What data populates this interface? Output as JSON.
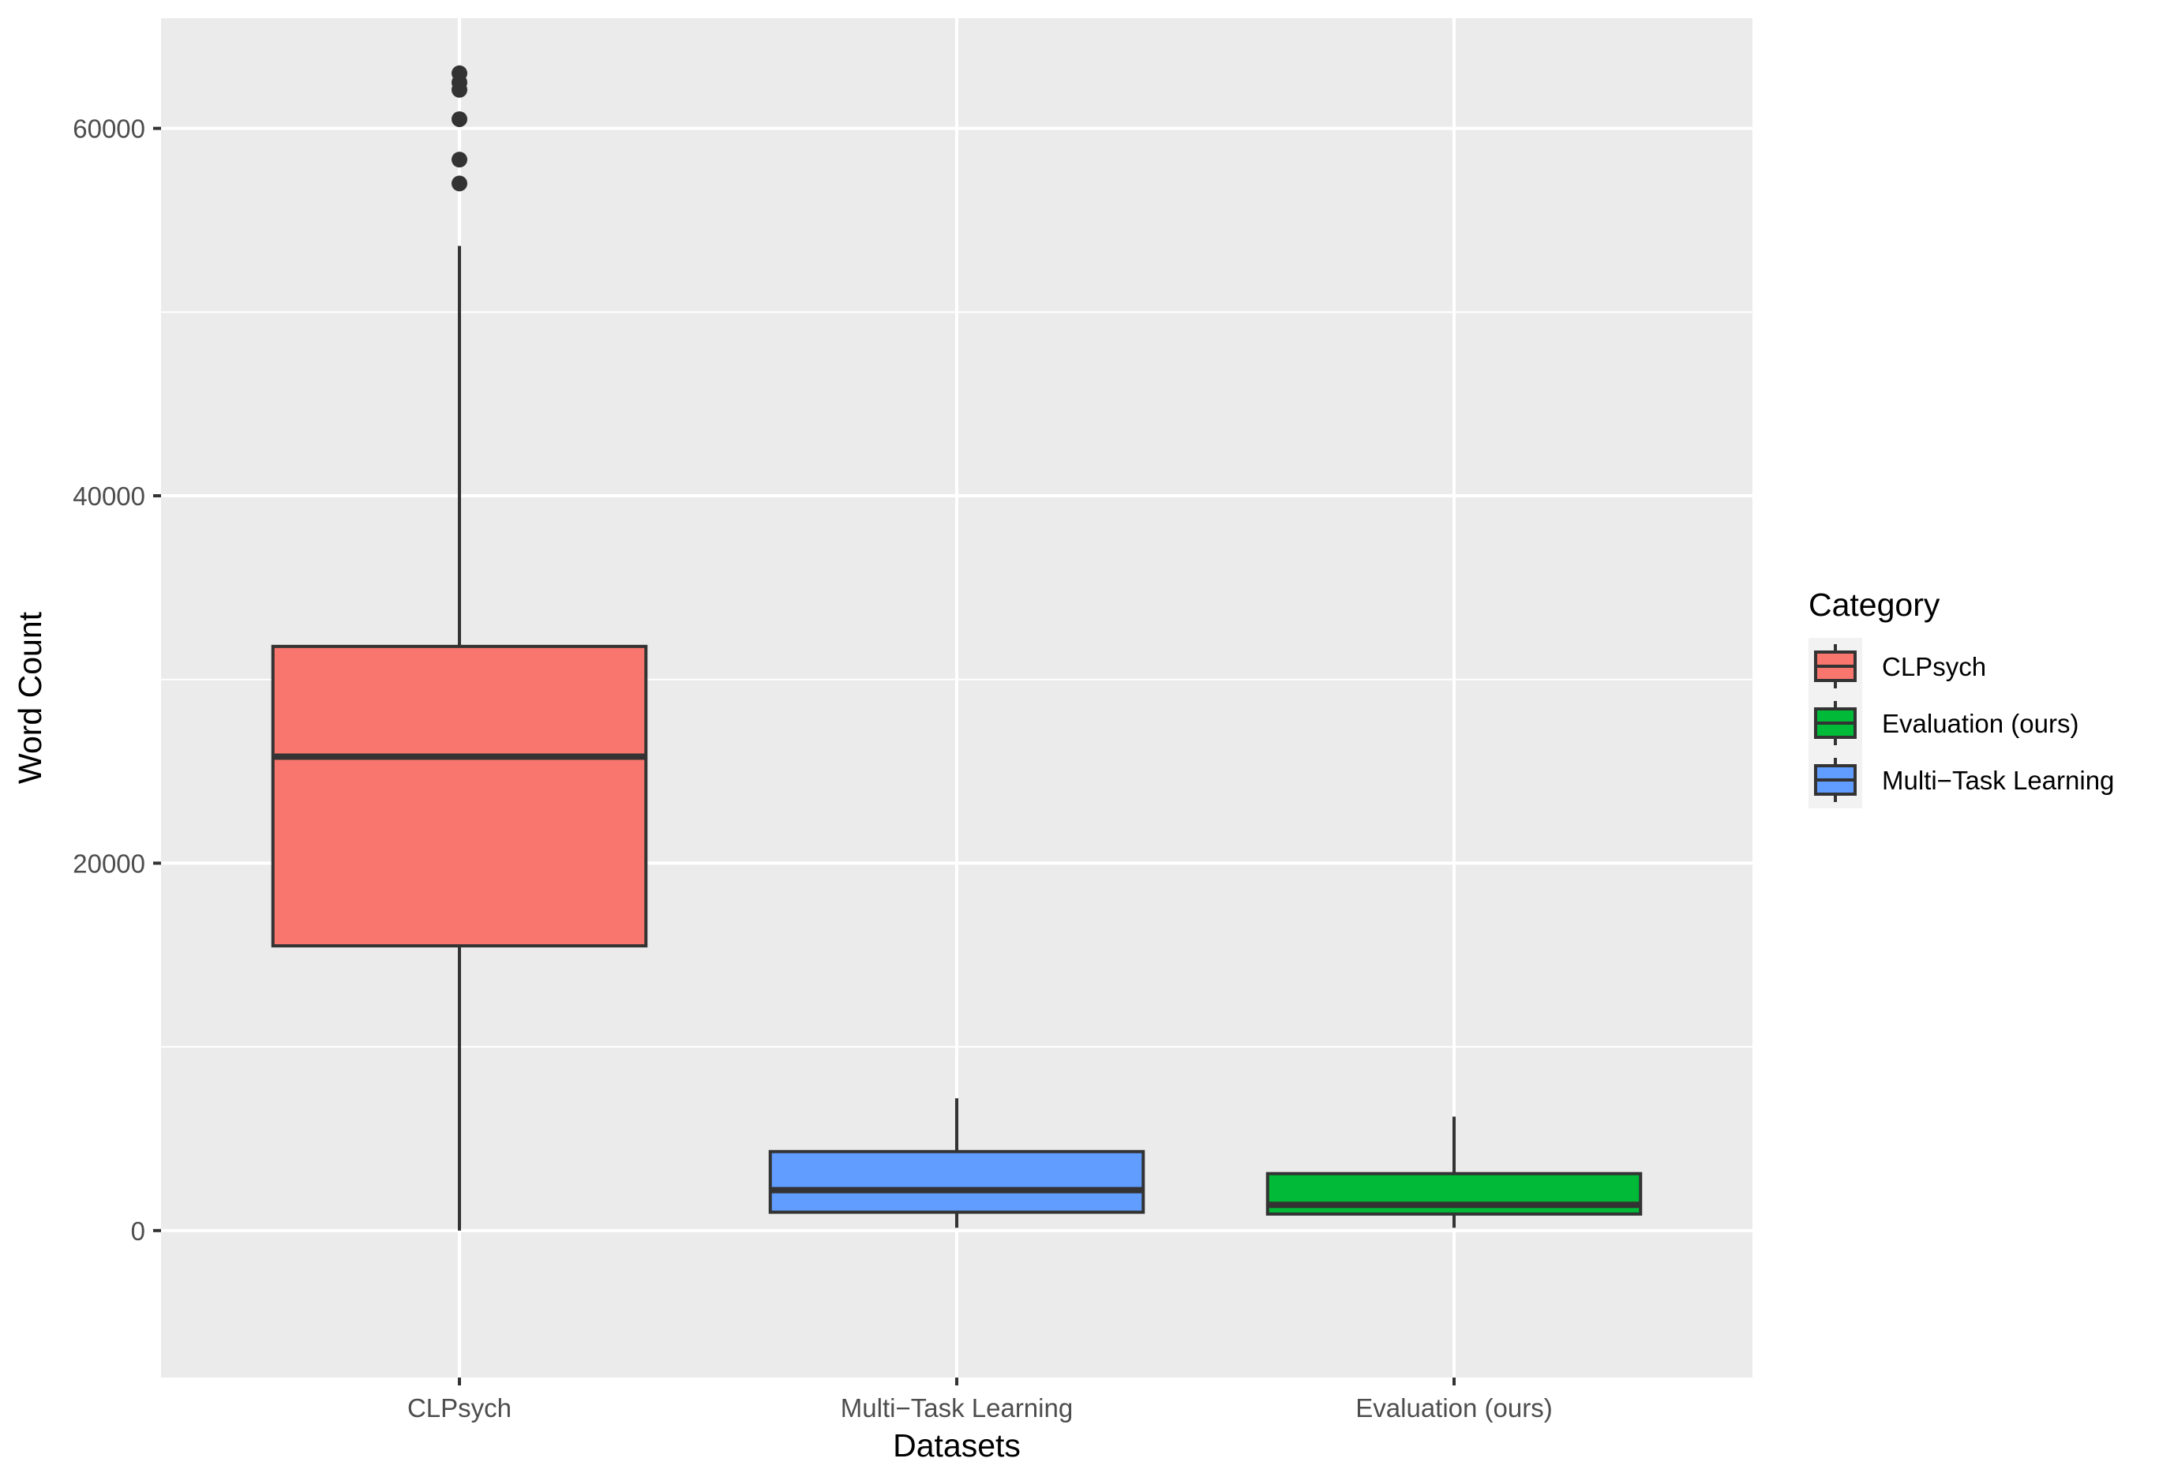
{
  "chart_data": {
    "type": "boxplot",
    "xlabel": "Datasets",
    "ylabel": "Word Count",
    "ylim": [
      -8000,
      66000
    ],
    "yticks": [
      0,
      20000,
      40000,
      60000
    ],
    "ytick_labels": [
      "0",
      "20000",
      "40000",
      "60000"
    ],
    "grid": true,
    "legend_position": "right",
    "legend_title": "Category",
    "categories": [
      "CLPsych",
      "Multi−Task Learning",
      "Evaluation (ours)"
    ],
    "boxes": [
      {
        "category": "CLPsych",
        "group": "CLPsych",
        "whisker_low": 0,
        "q1": 15500,
        "median": 25800,
        "q3": 31800,
        "whisker_high": 53600,
        "outliers": [
          57000,
          58300,
          60500,
          62100,
          62500,
          63000
        ]
      },
      {
        "category": "Multi−Task Learning",
        "group": "Multi−Task Learning",
        "whisker_low": 150,
        "q1": 1000,
        "median": 2200,
        "q3": 4300,
        "whisker_high": 7200,
        "outliers": []
      },
      {
        "category": "Evaluation (ours)",
        "group": "Evaluation (ours)",
        "whisker_low": 150,
        "q1": 900,
        "median": 1400,
        "q3": 3100,
        "whisker_high": 6200,
        "outliers": []
      }
    ],
    "legend": [
      {
        "label": "CLPsych",
        "color": "#F8766D"
      },
      {
        "label": "Evaluation (ours)",
        "color": "#00BA38"
      },
      {
        "label": "Multi−Task Learning",
        "color": "#619CFF"
      }
    ],
    "colors": {
      "CLPsych": "#F8766D",
      "Multi−Task Learning": "#619CFF",
      "Evaluation (ours)": "#00BA38",
      "panel_background": "#EBEBEB",
      "grid_major": "#FFFFFF",
      "box_outline": "#333333"
    }
  }
}
